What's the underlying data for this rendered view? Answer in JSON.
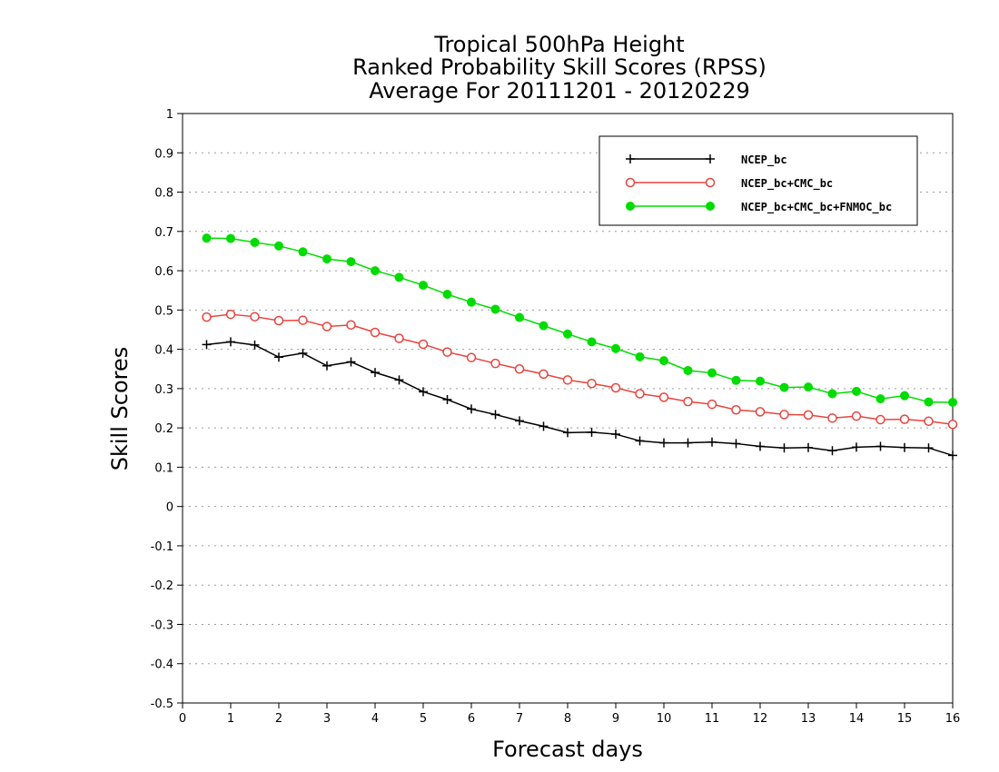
{
  "chart_data": {
    "type": "line",
    "title_lines": [
      "Tropical 500hPa Height",
      "Ranked Probability Skill Scores (RPSS)",
      "Average For 20111201 - 20120229"
    ],
    "xlabel": "Forecast days",
    "ylabel": "Skill Scores",
    "xlim": [
      0,
      16
    ],
    "ylim": [
      -0.5,
      1
    ],
    "x_ticks": [
      "0",
      "1",
      "2",
      "3",
      "4",
      "5",
      "6",
      "7",
      "8",
      "9",
      "10",
      "11",
      "12",
      "13",
      "14",
      "15",
      "16"
    ],
    "y_ticks": [
      "1",
      "0.9",
      "0.8",
      "0.7",
      "0.6",
      "0.5",
      "0.4",
      "0.3",
      "0.2",
      "0.1",
      "0",
      "-0.1",
      "-0.2",
      "-0.3",
      "-0.4",
      "-0.5"
    ],
    "grid": "horizontal dotted",
    "legend_position": "top-right",
    "x": [
      0.5,
      1,
      1.5,
      2,
      2.5,
      3,
      3.5,
      4,
      4.5,
      5,
      5.5,
      6,
      6.5,
      7,
      7.5,
      8,
      8.5,
      9,
      9.5,
      10,
      10.5,
      11,
      11.5,
      12,
      12.5,
      13,
      13.5,
      14,
      14.5,
      15,
      15.5,
      16
    ],
    "series": [
      {
        "name": "NCEP_bc",
        "color": "#000000",
        "marker": "plus",
        "values": [
          0.412,
          0.419,
          0.411,
          0.38,
          0.39,
          0.358,
          0.368,
          0.341,
          0.322,
          0.292,
          0.272,
          0.248,
          0.234,
          0.218,
          0.204,
          0.188,
          0.189,
          0.184,
          0.167,
          0.162,
          0.162,
          0.164,
          0.16,
          0.153,
          0.149,
          0.15,
          0.142,
          0.151,
          0.153,
          0.15,
          0.149,
          0.13
        ]
      },
      {
        "name": "NCEP_bc+CMC_bc",
        "color": "#e8443e",
        "marker": "open-circle",
        "values": [
          0.482,
          0.489,
          0.483,
          0.473,
          0.474,
          0.458,
          0.462,
          0.443,
          0.428,
          0.413,
          0.393,
          0.379,
          0.364,
          0.35,
          0.337,
          0.322,
          0.313,
          0.302,
          0.287,
          0.278,
          0.267,
          0.26,
          0.246,
          0.241,
          0.234,
          0.233,
          0.225,
          0.23,
          0.221,
          0.222,
          0.217,
          0.209
        ]
      },
      {
        "name": "NCEP_bc+CMC_bc+FNMOC_bc",
        "color": "#00dc00",
        "marker": "filled-circle",
        "values": [
          0.683,
          0.682,
          0.672,
          0.663,
          0.648,
          0.63,
          0.623,
          0.6,
          0.583,
          0.563,
          0.54,
          0.52,
          0.502,
          0.481,
          0.46,
          0.439,
          0.419,
          0.402,
          0.381,
          0.371,
          0.346,
          0.34,
          0.321,
          0.319,
          0.303,
          0.304,
          0.287,
          0.293,
          0.274,
          0.282,
          0.266,
          0.265
        ]
      }
    ]
  }
}
